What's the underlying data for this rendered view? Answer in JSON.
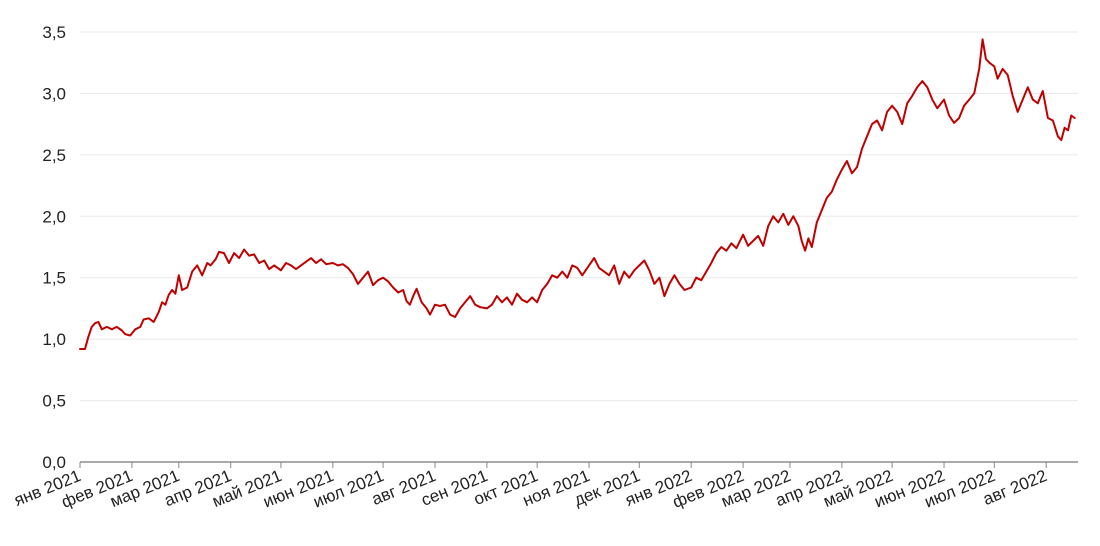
{
  "chart_data": {
    "type": "line",
    "title": "",
    "xlabel": "",
    "ylabel": "",
    "ylim": [
      0,
      3.5
    ],
    "y_ticks": [
      "0,0",
      "0,5",
      "1,0",
      "1,5",
      "2,0",
      "2,5",
      "3,0",
      "3,5"
    ],
    "y_tick_values": [
      0,
      0.5,
      1.0,
      1.5,
      2.0,
      2.5,
      3.0,
      3.5
    ],
    "x_range": [
      "2021-01-01",
      "2022-08-20"
    ],
    "x_ticks": [
      {
        "date": "2021-01-01",
        "label": "янв 2021"
      },
      {
        "date": "2021-02-01",
        "label": "фев 2021"
      },
      {
        "date": "2021-03-01",
        "label": "мар 2021"
      },
      {
        "date": "2021-04-01",
        "label": "апр 2021"
      },
      {
        "date": "2021-05-01",
        "label": "май 2021"
      },
      {
        "date": "2021-06-01",
        "label": "июн 2021"
      },
      {
        "date": "2021-07-01",
        "label": "июл 2021"
      },
      {
        "date": "2021-08-01",
        "label": "авг 2021"
      },
      {
        "date": "2021-09-01",
        "label": "сен 2021"
      },
      {
        "date": "2021-10-01",
        "label": "окт 2021"
      },
      {
        "date": "2021-11-01",
        "label": "ноя 2021"
      },
      {
        "date": "2021-12-01",
        "label": "дек 2021"
      },
      {
        "date": "2022-01-01",
        "label": "янв 2022"
      },
      {
        "date": "2022-02-01",
        "label": "фев 2022"
      },
      {
        "date": "2022-03-01",
        "label": "мар 2022"
      },
      {
        "date": "2022-04-01",
        "label": "апр 2022"
      },
      {
        "date": "2022-05-01",
        "label": "май 2022"
      },
      {
        "date": "2022-06-01",
        "label": "июн 2022"
      },
      {
        "date": "2022-07-01",
        "label": "июл 2022"
      },
      {
        "date": "2022-08-01",
        "label": "авг 2022"
      }
    ],
    "grid": true,
    "legend": "none",
    "series": [
      {
        "color": "#c00000",
        "points": [
          [
            "2021-01-01",
            0.92
          ],
          [
            "2021-01-04",
            0.92
          ],
          [
            "2021-01-06",
            1.02
          ],
          [
            "2021-01-08",
            1.1
          ],
          [
            "2021-01-10",
            1.13
          ],
          [
            "2021-01-12",
            1.14
          ],
          [
            "2021-01-14",
            1.08
          ],
          [
            "2021-01-17",
            1.1
          ],
          [
            "2021-01-20",
            1.08
          ],
          [
            "2021-01-23",
            1.1
          ],
          [
            "2021-01-26",
            1.07
          ],
          [
            "2021-01-28",
            1.04
          ],
          [
            "2021-01-31",
            1.03
          ],
          [
            "2021-02-03",
            1.08
          ],
          [
            "2021-02-06",
            1.1
          ],
          [
            "2021-02-08",
            1.16
          ],
          [
            "2021-02-11",
            1.17
          ],
          [
            "2021-02-14",
            1.14
          ],
          [
            "2021-02-17",
            1.22
          ],
          [
            "2021-02-19",
            1.3
          ],
          [
            "2021-02-21",
            1.28
          ],
          [
            "2021-02-23",
            1.36
          ],
          [
            "2021-02-25",
            1.4
          ],
          [
            "2021-02-27",
            1.37
          ],
          [
            "2021-03-01",
            1.52
          ],
          [
            "2021-03-03",
            1.4
          ],
          [
            "2021-03-06",
            1.42
          ],
          [
            "2021-03-09",
            1.55
          ],
          [
            "2021-03-12",
            1.6
          ],
          [
            "2021-03-15",
            1.52
          ],
          [
            "2021-03-18",
            1.62
          ],
          [
            "2021-03-20",
            1.6
          ],
          [
            "2021-03-23",
            1.65
          ],
          [
            "2021-03-25",
            1.71
          ],
          [
            "2021-03-28",
            1.7
          ],
          [
            "2021-03-31",
            1.62
          ],
          [
            "2021-04-03",
            1.7
          ],
          [
            "2021-04-06",
            1.66
          ],
          [
            "2021-04-09",
            1.73
          ],
          [
            "2021-04-12",
            1.68
          ],
          [
            "2021-04-15",
            1.69
          ],
          [
            "2021-04-18",
            1.62
          ],
          [
            "2021-04-21",
            1.64
          ],
          [
            "2021-04-24",
            1.57
          ],
          [
            "2021-04-27",
            1.6
          ],
          [
            "2021-05-01",
            1.56
          ],
          [
            "2021-05-04",
            1.62
          ],
          [
            "2021-05-07",
            1.6
          ],
          [
            "2021-05-10",
            1.57
          ],
          [
            "2021-05-13",
            1.6
          ],
          [
            "2021-05-16",
            1.63
          ],
          [
            "2021-05-19",
            1.66
          ],
          [
            "2021-05-22",
            1.62
          ],
          [
            "2021-05-25",
            1.65
          ],
          [
            "2021-05-28",
            1.61
          ],
          [
            "2021-06-01",
            1.62
          ],
          [
            "2021-06-04",
            1.6
          ],
          [
            "2021-06-07",
            1.61
          ],
          [
            "2021-06-10",
            1.58
          ],
          [
            "2021-06-13",
            1.53
          ],
          [
            "2021-06-16",
            1.45
          ],
          [
            "2021-06-19",
            1.5
          ],
          [
            "2021-06-22",
            1.55
          ],
          [
            "2021-06-25",
            1.44
          ],
          [
            "2021-06-28",
            1.48
          ],
          [
            "2021-07-01",
            1.5
          ],
          [
            "2021-07-04",
            1.47
          ],
          [
            "2021-07-07",
            1.42
          ],
          [
            "2021-07-10",
            1.38
          ],
          [
            "2021-07-13",
            1.4
          ],
          [
            "2021-07-15",
            1.31
          ],
          [
            "2021-07-17",
            1.28
          ],
          [
            "2021-07-19",
            1.35
          ],
          [
            "2021-07-21",
            1.41
          ],
          [
            "2021-07-24",
            1.3
          ],
          [
            "2021-07-27",
            1.25
          ],
          [
            "2021-07-29",
            1.2
          ],
          [
            "2021-08-01",
            1.28
          ],
          [
            "2021-08-04",
            1.27
          ],
          [
            "2021-08-07",
            1.28
          ],
          [
            "2021-08-10",
            1.2
          ],
          [
            "2021-08-13",
            1.18
          ],
          [
            "2021-08-16",
            1.25
          ],
          [
            "2021-08-19",
            1.3
          ],
          [
            "2021-08-22",
            1.35
          ],
          [
            "2021-08-25",
            1.28
          ],
          [
            "2021-08-28",
            1.26
          ],
          [
            "2021-09-01",
            1.25
          ],
          [
            "2021-09-04",
            1.28
          ],
          [
            "2021-09-07",
            1.35
          ],
          [
            "2021-09-10",
            1.3
          ],
          [
            "2021-09-13",
            1.34
          ],
          [
            "2021-09-16",
            1.28
          ],
          [
            "2021-09-19",
            1.37
          ],
          [
            "2021-09-22",
            1.32
          ],
          [
            "2021-09-25",
            1.3
          ],
          [
            "2021-09-28",
            1.34
          ],
          [
            "2021-10-01",
            1.3
          ],
          [
            "2021-10-04",
            1.4
          ],
          [
            "2021-10-07",
            1.45
          ],
          [
            "2021-10-10",
            1.52
          ],
          [
            "2021-10-13",
            1.5
          ],
          [
            "2021-10-16",
            1.55
          ],
          [
            "2021-10-19",
            1.5
          ],
          [
            "2021-10-22",
            1.6
          ],
          [
            "2021-10-25",
            1.58
          ],
          [
            "2021-10-28",
            1.52
          ],
          [
            "2021-11-01",
            1.6
          ],
          [
            "2021-11-04",
            1.66
          ],
          [
            "2021-11-07",
            1.58
          ],
          [
            "2021-11-10",
            1.55
          ],
          [
            "2021-11-13",
            1.52
          ],
          [
            "2021-11-16",
            1.6
          ],
          [
            "2021-11-19",
            1.45
          ],
          [
            "2021-11-22",
            1.55
          ],
          [
            "2021-11-25",
            1.5
          ],
          [
            "2021-11-28",
            1.56
          ],
          [
            "2021-12-01",
            1.6
          ],
          [
            "2021-12-04",
            1.64
          ],
          [
            "2021-12-07",
            1.56
          ],
          [
            "2021-12-10",
            1.45
          ],
          [
            "2021-12-13",
            1.5
          ],
          [
            "2021-12-16",
            1.35
          ],
          [
            "2021-12-19",
            1.45
          ],
          [
            "2021-12-22",
            1.52
          ],
          [
            "2021-12-25",
            1.45
          ],
          [
            "2021-12-28",
            1.4
          ],
          [
            "2022-01-01",
            1.42
          ],
          [
            "2022-01-04",
            1.5
          ],
          [
            "2022-01-07",
            1.48
          ],
          [
            "2022-01-10",
            1.55
          ],
          [
            "2022-01-13",
            1.62
          ],
          [
            "2022-01-16",
            1.7
          ],
          [
            "2022-01-19",
            1.75
          ],
          [
            "2022-01-22",
            1.72
          ],
          [
            "2022-01-25",
            1.78
          ],
          [
            "2022-01-28",
            1.74
          ],
          [
            "2022-02-01",
            1.85
          ],
          [
            "2022-02-04",
            1.76
          ],
          [
            "2022-02-07",
            1.8
          ],
          [
            "2022-02-10",
            1.84
          ],
          [
            "2022-02-13",
            1.76
          ],
          [
            "2022-02-16",
            1.92
          ],
          [
            "2022-02-19",
            2.0
          ],
          [
            "2022-02-22",
            1.95
          ],
          [
            "2022-02-25",
            2.02
          ],
          [
            "2022-02-28",
            1.93
          ],
          [
            "2022-03-03",
            2.0
          ],
          [
            "2022-03-06",
            1.92
          ],
          [
            "2022-03-08",
            1.8
          ],
          [
            "2022-03-10",
            1.72
          ],
          [
            "2022-03-12",
            1.82
          ],
          [
            "2022-03-14",
            1.75
          ],
          [
            "2022-03-17",
            1.95
          ],
          [
            "2022-03-20",
            2.05
          ],
          [
            "2022-03-23",
            2.15
          ],
          [
            "2022-03-26",
            2.2
          ],
          [
            "2022-03-29",
            2.3
          ],
          [
            "2022-04-01",
            2.38
          ],
          [
            "2022-04-04",
            2.45
          ],
          [
            "2022-04-07",
            2.35
          ],
          [
            "2022-04-10",
            2.4
          ],
          [
            "2022-04-13",
            2.55
          ],
          [
            "2022-04-16",
            2.65
          ],
          [
            "2022-04-19",
            2.75
          ],
          [
            "2022-04-22",
            2.78
          ],
          [
            "2022-04-25",
            2.7
          ],
          [
            "2022-04-28",
            2.85
          ],
          [
            "2022-05-01",
            2.9
          ],
          [
            "2022-05-04",
            2.85
          ],
          [
            "2022-05-07",
            2.75
          ],
          [
            "2022-05-10",
            2.92
          ],
          [
            "2022-05-13",
            2.98
          ],
          [
            "2022-05-16",
            3.05
          ],
          [
            "2022-05-19",
            3.1
          ],
          [
            "2022-05-22",
            3.05
          ],
          [
            "2022-05-25",
            2.95
          ],
          [
            "2022-05-28",
            2.88
          ],
          [
            "2022-06-01",
            2.95
          ],
          [
            "2022-06-04",
            2.82
          ],
          [
            "2022-06-07",
            2.76
          ],
          [
            "2022-06-10",
            2.8
          ],
          [
            "2022-06-13",
            2.9
          ],
          [
            "2022-06-16",
            2.95
          ],
          [
            "2022-06-19",
            3.0
          ],
          [
            "2022-06-22",
            3.2
          ],
          [
            "2022-06-24",
            3.44
          ],
          [
            "2022-06-26",
            3.28
          ],
          [
            "2022-06-28",
            3.25
          ],
          [
            "2022-07-01",
            3.22
          ],
          [
            "2022-07-03",
            3.12
          ],
          [
            "2022-07-06",
            3.2
          ],
          [
            "2022-07-09",
            3.15
          ],
          [
            "2022-07-12",
            2.98
          ],
          [
            "2022-07-15",
            2.85
          ],
          [
            "2022-07-18",
            2.95
          ],
          [
            "2022-07-21",
            3.05
          ],
          [
            "2022-07-24",
            2.95
          ],
          [
            "2022-07-27",
            2.92
          ],
          [
            "2022-07-30",
            3.02
          ],
          [
            "2022-08-02",
            2.8
          ],
          [
            "2022-08-05",
            2.78
          ],
          [
            "2022-08-08",
            2.65
          ],
          [
            "2022-08-10",
            2.62
          ],
          [
            "2022-08-12",
            2.72
          ],
          [
            "2022-08-14",
            2.7
          ],
          [
            "2022-08-16",
            2.82
          ],
          [
            "2022-08-18",
            2.8
          ]
        ]
      }
    ]
  }
}
